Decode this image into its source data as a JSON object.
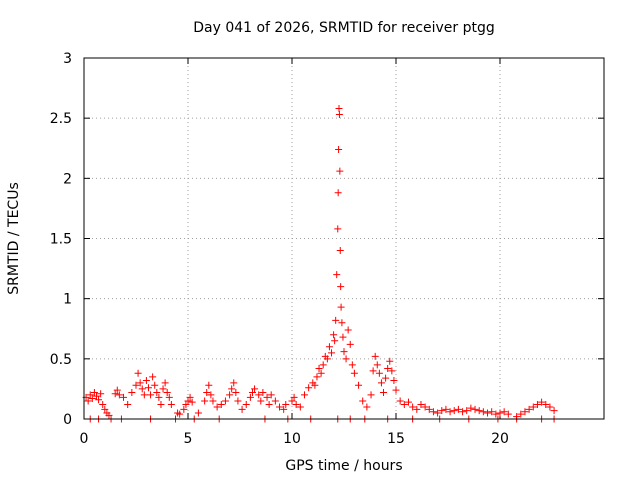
{
  "chart_data": {
    "type": "scatter",
    "title": "Day 041 of 2026, SRMTID for receiver ptgg",
    "xlabel": "GPS time / hours",
    "ylabel": "SRMTID / TECUs",
    "xlim": [
      0,
      25
    ],
    "ylim": [
      0,
      3
    ],
    "xticks": [
      0,
      5,
      10,
      15,
      20
    ],
    "xtick_labels": [
      "0",
      "5",
      "10",
      "15",
      "20"
    ],
    "yticks": [
      0,
      0.5,
      1,
      1.5,
      2,
      2.5,
      3
    ],
    "ytick_labels": [
      "0",
      "0.5",
      "1",
      "1.5",
      "2",
      "2.5",
      "3"
    ],
    "grid": true,
    "marker": "+",
    "color": "#ff0000",
    "series": [
      {
        "name": "SRMTID",
        "points": [
          [
            0.1,
            0.18
          ],
          [
            0.2,
            0.15
          ],
          [
            0.3,
            0.2
          ],
          [
            0.4,
            0.17
          ],
          [
            0.5,
            0.22
          ],
          [
            0.6,
            0.19
          ],
          [
            0.7,
            0.16
          ],
          [
            0.8,
            0.21
          ],
          [
            0.9,
            0.12
          ],
          [
            1.0,
            0.08
          ],
          [
            1.1,
            0.05
          ],
          [
            1.2,
            0.03
          ],
          [
            1.5,
            0.21
          ],
          [
            1.6,
            0.24
          ],
          [
            1.7,
            0.2
          ],
          [
            1.9,
            0.18
          ],
          [
            2.1,
            0.12
          ],
          [
            2.3,
            0.22
          ],
          [
            2.5,
            0.28
          ],
          [
            2.6,
            0.38
          ],
          [
            2.7,
            0.3
          ],
          [
            2.8,
            0.25
          ],
          [
            2.9,
            0.2
          ],
          [
            3.0,
            0.32
          ],
          [
            3.1,
            0.26
          ],
          [
            3.2,
            0.2
          ],
          [
            3.3,
            0.35
          ],
          [
            3.4,
            0.28
          ],
          [
            3.5,
            0.22
          ],
          [
            3.6,
            0.18
          ],
          [
            3.7,
            0.12
          ],
          [
            3.8,
            0.25
          ],
          [
            3.9,
            0.3
          ],
          [
            4.0,
            0.22
          ],
          [
            4.1,
            0.18
          ],
          [
            4.2,
            0.12
          ],
          [
            4.5,
            0.05
          ],
          [
            4.6,
            0.04
          ],
          [
            4.8,
            0.08
          ],
          [
            4.9,
            0.12
          ],
          [
            5.0,
            0.15
          ],
          [
            5.1,
            0.18
          ],
          [
            5.2,
            0.14
          ],
          [
            5.5,
            0.05
          ],
          [
            5.8,
            0.15
          ],
          [
            5.9,
            0.22
          ],
          [
            6.0,
            0.28
          ],
          [
            6.1,
            0.2
          ],
          [
            6.2,
            0.15
          ],
          [
            6.4,
            0.1
          ],
          [
            6.6,
            0.12
          ],
          [
            6.8,
            0.15
          ],
          [
            7.0,
            0.2
          ],
          [
            7.1,
            0.25
          ],
          [
            7.2,
            0.3
          ],
          [
            7.3,
            0.22
          ],
          [
            7.4,
            0.15
          ],
          [
            7.6,
            0.08
          ],
          [
            7.8,
            0.12
          ],
          [
            8.0,
            0.18
          ],
          [
            8.1,
            0.22
          ],
          [
            8.2,
            0.25
          ],
          [
            8.4,
            0.2
          ],
          [
            8.5,
            0.15
          ],
          [
            8.6,
            0.22
          ],
          [
            8.8,
            0.18
          ],
          [
            8.9,
            0.12
          ],
          [
            9.0,
            0.2
          ],
          [
            9.2,
            0.15
          ],
          [
            9.4,
            0.1
          ],
          [
            9.6,
            0.08
          ],
          [
            9.7,
            0.12
          ],
          [
            10.0,
            0.15
          ],
          [
            10.1,
            0.18
          ],
          [
            10.2,
            0.12
          ],
          [
            10.4,
            0.1
          ],
          [
            10.6,
            0.2
          ],
          [
            10.8,
            0.26
          ],
          [
            11.0,
            0.3
          ],
          [
            11.1,
            0.28
          ],
          [
            11.2,
            0.35
          ],
          [
            11.3,
            0.42
          ],
          [
            11.4,
            0.38
          ],
          [
            11.5,
            0.45
          ],
          [
            11.6,
            0.52
          ],
          [
            11.7,
            0.5
          ],
          [
            11.8,
            0.6
          ],
          [
            11.9,
            0.55
          ],
          [
            12.0,
            0.7
          ],
          [
            12.05,
            0.65
          ],
          [
            12.1,
            0.82
          ],
          [
            12.15,
            1.2
          ],
          [
            12.2,
            1.58
          ],
          [
            12.22,
            1.88
          ],
          [
            12.24,
            2.24
          ],
          [
            12.26,
            2.58
          ],
          [
            12.28,
            2.53
          ],
          [
            12.3,
            2.06
          ],
          [
            12.32,
            1.4
          ],
          [
            12.34,
            1.1
          ],
          [
            12.36,
            0.93
          ],
          [
            12.4,
            0.8
          ],
          [
            12.45,
            0.68
          ],
          [
            12.5,
            0.56
          ],
          [
            12.6,
            0.5
          ],
          [
            12.7,
            0.74
          ],
          [
            12.8,
            0.62
          ],
          [
            12.9,
            0.45
          ],
          [
            13.0,
            0.38
          ],
          [
            13.2,
            0.28
          ],
          [
            13.4,
            0.15
          ],
          [
            13.6,
            0.1
          ],
          [
            13.8,
            0.2
          ],
          [
            13.9,
            0.4
          ],
          [
            14.0,
            0.52
          ],
          [
            14.1,
            0.45
          ],
          [
            14.2,
            0.38
          ],
          [
            14.3,
            0.3
          ],
          [
            14.4,
            0.22
          ],
          [
            14.5,
            0.34
          ],
          [
            14.6,
            0.42
          ],
          [
            14.7,
            0.48
          ],
          [
            14.8,
            0.4
          ],
          [
            14.9,
            0.32
          ],
          [
            15.0,
            0.24
          ],
          [
            15.2,
            0.15
          ],
          [
            15.4,
            0.12
          ],
          [
            15.6,
            0.14
          ],
          [
            15.8,
            0.1
          ],
          [
            16.0,
            0.08
          ],
          [
            16.2,
            0.12
          ],
          [
            16.4,
            0.1
          ],
          [
            16.6,
            0.08
          ],
          [
            16.8,
            0.06
          ],
          [
            17.0,
            0.05
          ],
          [
            17.2,
            0.07
          ],
          [
            17.4,
            0.08
          ],
          [
            17.6,
            0.06
          ],
          [
            17.8,
            0.07
          ],
          [
            18.0,
            0.08
          ],
          [
            18.2,
            0.06
          ],
          [
            18.4,
            0.07
          ],
          [
            18.6,
            0.09
          ],
          [
            18.8,
            0.08
          ],
          [
            19.0,
            0.07
          ],
          [
            19.2,
            0.06
          ],
          [
            19.4,
            0.05
          ],
          [
            19.6,
            0.06
          ],
          [
            19.8,
            0.04
          ],
          [
            20.0,
            0.05
          ],
          [
            20.2,
            0.06
          ],
          [
            20.4,
            0.04
          ],
          [
            20.8,
            0.02
          ],
          [
            21.0,
            0.04
          ],
          [
            21.2,
            0.06
          ],
          [
            21.4,
            0.08
          ],
          [
            21.6,
            0.1
          ],
          [
            21.8,
            0.12
          ],
          [
            22.0,
            0.14
          ],
          [
            22.2,
            0.12
          ],
          [
            22.4,
            0.1
          ],
          [
            22.6,
            0.07
          ],
          [
            0.3,
            0.0
          ],
          [
            0.7,
            0.0
          ],
          [
            1.3,
            0.0
          ],
          [
            1.8,
            0.0
          ],
          [
            3.2,
            0.0
          ],
          [
            4.4,
            0.0
          ],
          [
            5.3,
            0.0
          ],
          [
            6.5,
            0.0
          ],
          [
            8.7,
            0.0
          ],
          [
            9.8,
            0.0
          ],
          [
            10.9,
            0.0
          ],
          [
            12.2,
            0.0
          ],
          [
            12.8,
            0.0
          ],
          [
            13.5,
            0.0
          ],
          [
            14.6,
            0.0
          ],
          [
            15.8,
            0.0
          ],
          [
            17.1,
            0.0
          ],
          [
            18.5,
            0.0
          ],
          [
            19.9,
            0.0
          ],
          [
            20.8,
            0.0
          ],
          [
            22.0,
            0.0
          ],
          [
            22.6,
            0.0
          ]
        ]
      }
    ]
  }
}
